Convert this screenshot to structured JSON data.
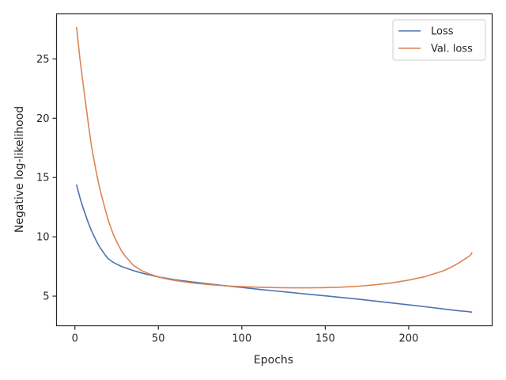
{
  "chart_data": {
    "type": "line",
    "title": "",
    "xlabel": "Epochs",
    "ylabel": "Negative log-likelihood",
    "xlim": [
      -11,
      250
    ],
    "ylim": [
      2.5,
      28.8
    ],
    "xticks": [
      0,
      50,
      100,
      150,
      200
    ],
    "yticks": [
      5,
      10,
      15,
      20,
      25
    ],
    "grid": false,
    "legend_position": "top-right",
    "series": [
      {
        "name": "Loss",
        "color": "#4c72b0",
        "x": [
          1,
          3,
          5,
          8,
          10,
          13,
          15,
          18,
          20,
          23,
          25,
          28,
          30,
          35,
          40,
          45,
          50,
          55,
          60,
          70,
          80,
          90,
          100,
          110,
          120,
          130,
          140,
          150,
          160,
          170,
          180,
          190,
          200,
          210,
          220,
          225,
          230,
          235,
          238
        ],
        "y": [
          14.4,
          13.3,
          12.4,
          11.2,
          10.5,
          9.6,
          9.1,
          8.5,
          8.15,
          7.85,
          7.7,
          7.5,
          7.4,
          7.15,
          6.95,
          6.78,
          6.62,
          6.5,
          6.38,
          6.2,
          6.03,
          5.88,
          5.73,
          5.58,
          5.44,
          5.3,
          5.16,
          5.02,
          4.88,
          4.74,
          4.58,
          4.42,
          4.26,
          4.1,
          3.93,
          3.85,
          3.76,
          3.7,
          3.65
        ]
      },
      {
        "name": "Val. loss",
        "color": "#dd8452",
        "x": [
          1,
          3,
          5,
          8,
          10,
          13,
          15,
          18,
          20,
          23,
          25,
          28,
          30,
          35,
          40,
          45,
          50,
          55,
          60,
          70,
          80,
          90,
          100,
          110,
          120,
          130,
          140,
          150,
          160,
          170,
          180,
          190,
          200,
          210,
          220,
          225,
          230,
          235,
          237,
          238
        ],
        "y": [
          27.7,
          25.0,
          22.8,
          19.6,
          17.6,
          15.3,
          14.0,
          12.4,
          11.4,
          10.2,
          9.6,
          8.8,
          8.4,
          7.6,
          7.15,
          6.85,
          6.62,
          6.45,
          6.32,
          6.12,
          5.98,
          5.87,
          5.8,
          5.75,
          5.72,
          5.7,
          5.7,
          5.72,
          5.76,
          5.84,
          5.96,
          6.12,
          6.35,
          6.65,
          7.1,
          7.4,
          7.8,
          8.25,
          8.45,
          8.7
        ]
      }
    ]
  }
}
